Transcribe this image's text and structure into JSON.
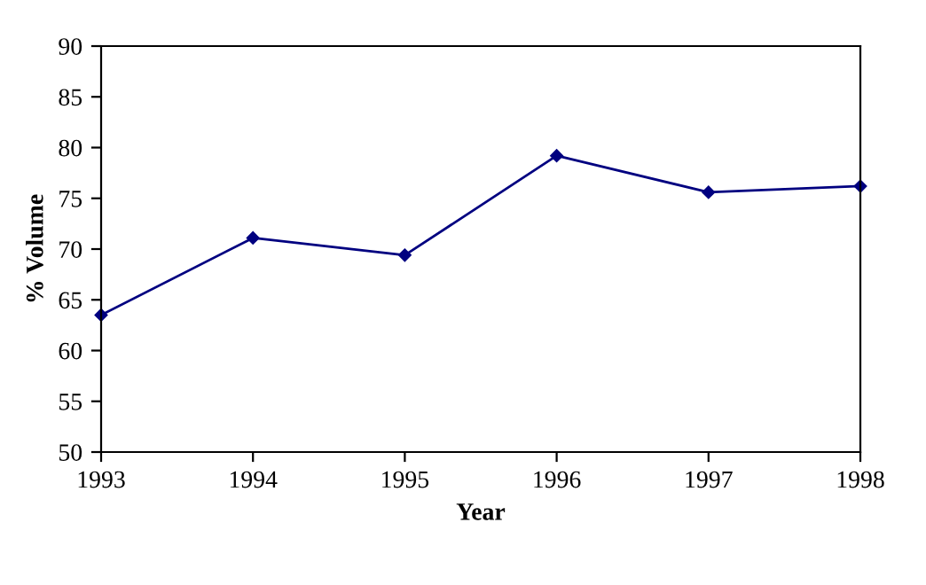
{
  "chart_data": {
    "type": "line",
    "xlabel": "Year",
    "ylabel": "% Volume",
    "x": [
      1993,
      1994,
      1995,
      1996,
      1997,
      1998
    ],
    "series": [
      {
        "color": "#000080",
        "values": [
          63.5,
          71.1,
          69.4,
          79.2,
          75.6,
          76.2
        ]
      }
    ],
    "xlim": [
      1993,
      1998
    ],
    "xticks": [
      1993,
      1994,
      1995,
      1996,
      1997,
      1998
    ],
    "ylim": [
      50,
      90
    ],
    "yticks": [
      50,
      55,
      60,
      65,
      70,
      75,
      80,
      85,
      90
    ],
    "grid": false,
    "legend": false,
    "marker": "diamond",
    "line_style": "solid"
  }
}
